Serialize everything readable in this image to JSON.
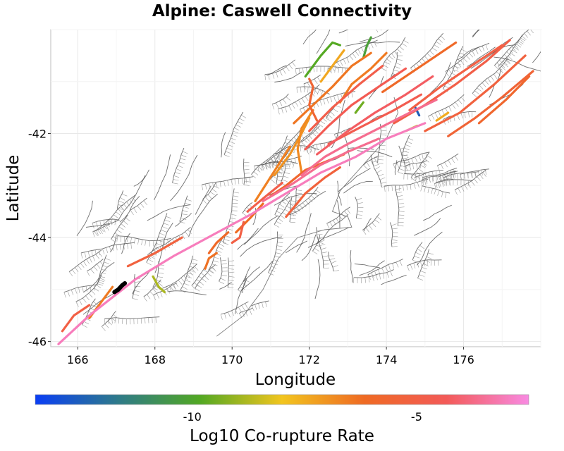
{
  "chart_data": {
    "type": "map",
    "title": "Alpine: Caswell Connectivity",
    "xlabel": "Longitude",
    "ylabel": "Latitude",
    "xlim": [
      165.3,
      178.0
    ],
    "ylim": [
      -46.1,
      -40.0
    ],
    "xticks": [
      166,
      168,
      170,
      172,
      174,
      176
    ],
    "yticks": [
      -42,
      -44,
      -46
    ],
    "grid": true,
    "colorbar": {
      "label": "Log10 Co-rupture Rate",
      "range": [
        -13.5,
        -2.5
      ],
      "ticks": [
        -10,
        -5
      ],
      "colors": [
        "#0a3ef5",
        "#2e7a8a",
        "#52a823",
        "#f2c51e",
        "#ef6a23",
        "#f35a58",
        "#f88ae2"
      ]
    },
    "source_fault": {
      "name": "Alpine: Caswell",
      "color": "#000000",
      "path": [
        [
          166.95,
          -45.05
        ],
        [
          167.05,
          -45.0
        ],
        [
          167.15,
          -44.92
        ],
        [
          167.22,
          -44.88
        ]
      ]
    },
    "background_color": "#555555",
    "faults": [
      {
        "value": -3.0,
        "path": [
          [
            165.5,
            -46.05
          ],
          [
            166.3,
            -45.5
          ],
          [
            167.5,
            -44.8
          ],
          [
            168.5,
            -44.35
          ],
          [
            169.5,
            -43.95
          ],
          [
            170.5,
            -43.55
          ],
          [
            171.4,
            -43.15
          ],
          [
            172.3,
            -42.75
          ],
          [
            173.2,
            -42.45
          ],
          [
            174.0,
            -42.1
          ],
          [
            175.0,
            -41.8
          ]
        ]
      },
      {
        "value": -3.6,
        "path": [
          [
            171.8,
            -42.8
          ],
          [
            172.4,
            -42.45
          ],
          [
            173.0,
            -42.2
          ],
          [
            173.8,
            -41.9
          ],
          [
            174.6,
            -41.6
          ],
          [
            175.3,
            -41.35
          ]
        ]
      },
      {
        "value": -3.6,
        "path": [
          [
            170.8,
            -43.3
          ],
          [
            171.6,
            -42.95
          ],
          [
            172.3,
            -42.6
          ],
          [
            173.0,
            -42.35
          ],
          [
            173.8,
            -42.1
          ]
        ]
      },
      {
        "value": -4.2,
        "path": [
          [
            172.2,
            -42.4
          ],
          [
            173.0,
            -41.95
          ],
          [
            173.7,
            -41.6
          ],
          [
            174.5,
            -41.25
          ],
          [
            175.2,
            -40.9
          ]
        ]
      },
      {
        "value": -4.5,
        "path": [
          [
            171.9,
            -42.3
          ],
          [
            172.5,
            -41.85
          ],
          [
            173.1,
            -41.45
          ],
          [
            173.8,
            -41.1
          ],
          [
            174.5,
            -40.75
          ]
        ]
      },
      {
        "value": -4.6,
        "path": [
          [
            172.5,
            -42.2
          ],
          [
            173.4,
            -41.85
          ],
          [
            174.2,
            -41.55
          ],
          [
            174.9,
            -41.25
          ]
        ]
      },
      {
        "value": -4.8,
        "path": [
          [
            172.0,
            -41.95
          ],
          [
            172.6,
            -41.5
          ],
          [
            173.3,
            -41.05
          ],
          [
            173.9,
            -40.7
          ]
        ]
      },
      {
        "value": -4.9,
        "path": [
          [
            174.2,
            -41.8
          ],
          [
            175.0,
            -41.45
          ],
          [
            175.8,
            -41.05
          ],
          [
            176.6,
            -40.6
          ],
          [
            177.2,
            -40.2
          ]
        ]
      },
      {
        "value": -5.0,
        "path": [
          [
            174.6,
            -41.55
          ],
          [
            175.4,
            -41.1
          ],
          [
            176.2,
            -40.7
          ],
          [
            177.0,
            -40.3
          ]
        ]
      },
      {
        "value": -5.2,
        "path": [
          [
            175.0,
            -41.95
          ],
          [
            175.9,
            -41.6
          ],
          [
            176.8,
            -41.05
          ],
          [
            177.6,
            -40.5
          ]
        ]
      },
      {
        "value": -5.5,
        "path": [
          [
            175.6,
            -42.05
          ],
          [
            176.3,
            -41.7
          ],
          [
            177.0,
            -41.3
          ],
          [
            177.8,
            -40.8
          ]
        ]
      },
      {
        "value": -5.8,
        "path": [
          [
            176.4,
            -41.8
          ],
          [
            177.1,
            -41.35
          ],
          [
            177.7,
            -40.9
          ]
        ]
      },
      {
        "value": -6.0,
        "path": [
          [
            173.9,
            -41.2
          ],
          [
            174.6,
            -40.85
          ],
          [
            175.2,
            -40.55
          ],
          [
            175.8,
            -40.25
          ]
        ]
      },
      {
        "value": -6.4,
        "path": [
          [
            171.6,
            -41.8
          ],
          [
            172.1,
            -41.45
          ],
          [
            172.6,
            -41.1
          ],
          [
            173.1,
            -40.7
          ],
          [
            173.6,
            -40.45
          ]
        ]
      },
      {
        "value": -6.5,
        "path": [
          [
            172.8,
            -41.4
          ],
          [
            173.1,
            -41.05
          ],
          [
            173.6,
            -40.75
          ],
          [
            174.0,
            -40.45
          ]
        ]
      },
      {
        "value": -6.8,
        "path": [
          [
            171.8,
            -42.75
          ],
          [
            171.7,
            -42.3
          ],
          [
            171.8,
            -41.9
          ],
          [
            172.1,
            -41.55
          ]
        ]
      },
      {
        "value": -7.0,
        "path": [
          [
            171.1,
            -42.8
          ],
          [
            171.5,
            -42.4
          ],
          [
            171.8,
            -42.0
          ],
          [
            172.0,
            -41.7
          ]
        ]
      },
      {
        "value": -6.6,
        "path": [
          [
            170.6,
            -43.3
          ],
          [
            170.9,
            -42.95
          ],
          [
            171.2,
            -42.6
          ],
          [
            171.5,
            -42.25
          ]
        ]
      },
      {
        "value": -7.4,
        "path": [
          [
            172.3,
            -41.0
          ],
          [
            172.6,
            -40.7
          ],
          [
            172.9,
            -40.4
          ]
        ]
      },
      {
        "value": -9.8,
        "path": [
          [
            171.9,
            -40.9
          ],
          [
            172.3,
            -40.5
          ],
          [
            172.6,
            -40.25
          ],
          [
            172.8,
            -40.3
          ]
        ]
      },
      {
        "value": -10.2,
        "path": [
          [
            173.4,
            -40.55
          ],
          [
            173.5,
            -40.3
          ],
          [
            173.6,
            -40.15
          ]
        ]
      },
      {
        "value": -9.5,
        "path": [
          [
            173.2,
            -41.6
          ],
          [
            173.4,
            -41.4
          ]
        ]
      },
      {
        "value": -5.6,
        "path": [
          [
            172.0,
            -40.95
          ],
          [
            172.1,
            -41.1
          ],
          [
            172.0,
            -41.45
          ],
          [
            172.2,
            -41.75
          ]
        ]
      },
      {
        "value": -6.2,
        "path": [
          [
            170.1,
            -43.9
          ],
          [
            170.5,
            -43.6
          ],
          [
            170.8,
            -43.35
          ]
        ]
      },
      {
        "value": -5.8,
        "path": [
          [
            171.0,
            -43.2
          ],
          [
            171.4,
            -43.0
          ],
          [
            171.9,
            -42.7
          ],
          [
            172.4,
            -42.55
          ],
          [
            172.9,
            -42.4
          ]
        ]
      },
      {
        "value": -5.3,
        "path": [
          [
            171.4,
            -43.6
          ],
          [
            171.9,
            -43.15
          ],
          [
            172.4,
            -42.85
          ],
          [
            172.8,
            -42.65
          ]
        ]
      },
      {
        "value": -4.8,
        "path": [
          [
            170.4,
            -43.5
          ],
          [
            170.8,
            -43.25
          ],
          [
            171.3,
            -42.95
          ]
        ]
      },
      {
        "value": -5.0,
        "path": [
          [
            170.3,
            -43.7
          ],
          [
            170.2,
            -44.0
          ],
          [
            170.0,
            -44.1
          ]
        ]
      },
      {
        "value": -6.0,
        "path": [
          [
            169.9,
            -43.9
          ],
          [
            169.6,
            -44.1
          ],
          [
            169.4,
            -44.3
          ]
        ]
      },
      {
        "value": -6.3,
        "path": [
          [
            169.6,
            -44.3
          ],
          [
            169.4,
            -44.4
          ],
          [
            169.3,
            -44.6
          ]
        ]
      },
      {
        "value": -5.2,
        "path": [
          [
            167.3,
            -44.55
          ],
          [
            168.0,
            -44.3
          ],
          [
            168.7,
            -44.0
          ]
        ]
      },
      {
        "value": -6.5,
        "path": [
          [
            166.3,
            -45.55
          ],
          [
            166.6,
            -45.25
          ],
          [
            166.9,
            -44.95
          ]
        ]
      },
      {
        "value": -5.0,
        "path": [
          [
            165.6,
            -45.8
          ],
          [
            165.9,
            -45.5
          ],
          [
            166.3,
            -45.3
          ]
        ]
      },
      {
        "value": -8.8,
        "path": [
          [
            167.95,
            -44.75
          ],
          [
            168.1,
            -44.95
          ],
          [
            168.25,
            -45.05
          ]
        ]
      },
      {
        "value": -12.5,
        "path": [
          [
            174.75,
            -41.5
          ],
          [
            174.85,
            -41.65
          ]
        ]
      },
      {
        "value": -8.5,
        "path": [
          [
            174.5,
            -41.95
          ],
          [
            174.8,
            -41.85
          ]
        ]
      },
      {
        "value": -7.5,
        "path": [
          [
            175.3,
            -41.75
          ],
          [
            175.6,
            -41.6
          ]
        ]
      }
    ]
  }
}
